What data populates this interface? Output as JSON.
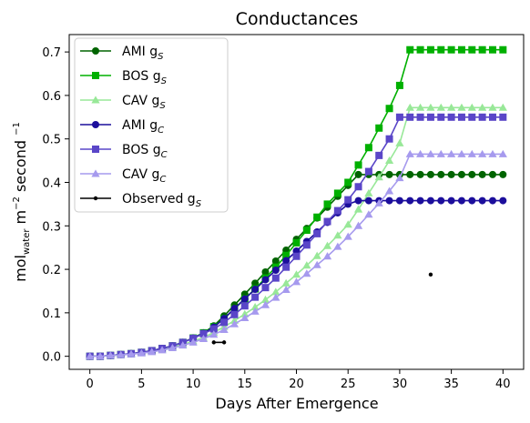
{
  "chart_data": {
    "type": "line",
    "title": "Conductances",
    "xlabel": "Days After Emergence",
    "ylabel": {
      "prefix": "mol",
      "subscript": "water",
      "mid": " m",
      "sup1": "−2",
      "mid2": " second ",
      "sup2": "−1"
    },
    "xlim": [
      -2,
      42
    ],
    "ylim": [
      -0.03,
      0.74
    ],
    "xticks": [
      0,
      5,
      10,
      15,
      20,
      25,
      30,
      35,
      40
    ],
    "yticks": [
      0.0,
      0.1,
      0.2,
      0.3,
      0.4,
      0.5,
      0.6,
      0.7
    ],
    "xtick_labels": [
      "0",
      "5",
      "10",
      "15",
      "20",
      "25",
      "30",
      "35",
      "40"
    ],
    "ytick_labels": [
      "0.0",
      "0.1",
      "0.2",
      "0.3",
      "0.4",
      "0.5",
      "0.6",
      "0.7"
    ],
    "legend_position": "upper-left",
    "x": [
      0,
      1,
      2,
      3,
      4,
      5,
      6,
      7,
      8,
      9,
      10,
      11,
      12,
      13,
      14,
      15,
      16,
      17,
      18,
      19,
      20,
      21,
      22,
      23,
      24,
      25,
      26,
      27,
      28,
      29,
      30,
      31,
      32,
      33,
      34,
      35,
      36,
      37,
      38,
      39,
      40
    ],
    "series": [
      {
        "name": "AMI g",
        "sub": "S",
        "color": "#006400",
        "marker": "circle",
        "values": [
          0.0,
          0.0,
          0.002,
          0.004,
          0.006,
          0.009,
          0.013,
          0.018,
          0.024,
          0.032,
          0.042,
          0.054,
          0.07,
          0.093,
          0.118,
          0.143,
          0.168,
          0.194,
          0.219,
          0.244,
          0.269,
          0.294,
          0.318,
          0.343,
          0.368,
          0.393,
          0.418,
          0.418,
          0.418,
          0.418,
          0.418,
          0.418,
          0.418,
          0.418,
          0.418,
          0.418,
          0.418,
          0.418,
          0.418,
          0.418,
          0.418
        ]
      },
      {
        "name": "BOS g",
        "sub": "S",
        "color": "#00b000",
        "marker": "square",
        "values": [
          0.0,
          0.0,
          0.002,
          0.004,
          0.006,
          0.009,
          0.013,
          0.018,
          0.024,
          0.032,
          0.042,
          0.054,
          0.068,
          0.087,
          0.109,
          0.132,
          0.155,
          0.18,
          0.205,
          0.232,
          0.261,
          0.29,
          0.32,
          0.35,
          0.375,
          0.4,
          0.44,
          0.48,
          0.525,
          0.57,
          0.623,
          0.705,
          0.705,
          0.705,
          0.705,
          0.705,
          0.705,
          0.705,
          0.705,
          0.705,
          0.705
        ]
      },
      {
        "name": "CAV g",
        "sub": "S",
        "color": "#98e898",
        "marker": "triangle",
        "values": [
          0.0,
          0.0,
          0.002,
          0.003,
          0.005,
          0.008,
          0.011,
          0.016,
          0.021,
          0.027,
          0.035,
          0.043,
          0.055,
          0.068,
          0.082,
          0.097,
          0.113,
          0.13,
          0.148,
          0.168,
          0.188,
          0.209,
          0.231,
          0.254,
          0.278,
          0.303,
          0.338,
          0.375,
          0.412,
          0.45,
          0.49,
          0.572,
          0.572,
          0.572,
          0.572,
          0.572,
          0.572,
          0.572,
          0.572,
          0.572,
          0.572
        ]
      },
      {
        "name": "AMI g",
        "sub": "C",
        "color": "#1c0e9c",
        "marker": "circle",
        "values": [
          0.0,
          0.0,
          0.002,
          0.004,
          0.006,
          0.009,
          0.013,
          0.018,
          0.024,
          0.032,
          0.042,
          0.053,
          0.067,
          0.087,
          0.11,
          0.132,
          0.154,
          0.176,
          0.198,
          0.22,
          0.242,
          0.264,
          0.286,
          0.308,
          0.33,
          0.35,
          0.358,
          0.358,
          0.358,
          0.358,
          0.358,
          0.358,
          0.358,
          0.358,
          0.358,
          0.358,
          0.358,
          0.358,
          0.358,
          0.358,
          0.358
        ]
      },
      {
        "name": "BOS g",
        "sub": "C",
        "color": "#5a46c8",
        "marker": "square",
        "values": [
          0.0,
          0.0,
          0.002,
          0.004,
          0.006,
          0.009,
          0.013,
          0.018,
          0.024,
          0.032,
          0.041,
          0.052,
          0.063,
          0.078,
          0.096,
          0.116,
          0.136,
          0.158,
          0.18,
          0.205,
          0.23,
          0.256,
          0.282,
          0.31,
          0.335,
          0.36,
          0.39,
          0.425,
          0.462,
          0.5,
          0.55,
          0.55,
          0.55,
          0.55,
          0.55,
          0.55,
          0.55,
          0.55,
          0.55,
          0.55,
          0.55
        ]
      },
      {
        "name": "CAV g",
        "sub": "C",
        "color": "#a69aee",
        "marker": "triangle",
        "values": [
          0.0,
          0.0,
          0.002,
          0.003,
          0.005,
          0.007,
          0.01,
          0.014,
          0.019,
          0.025,
          0.032,
          0.04,
          0.05,
          0.061,
          0.074,
          0.088,
          0.103,
          0.118,
          0.135,
          0.153,
          0.171,
          0.19,
          0.21,
          0.23,
          0.252,
          0.275,
          0.3,
          0.326,
          0.352,
          0.38,
          0.41,
          0.465,
          0.465,
          0.465,
          0.465,
          0.465,
          0.465,
          0.465,
          0.465,
          0.465,
          0.465
        ]
      }
    ],
    "observed": {
      "name": "Observed g",
      "sub": "S",
      "color": "#000000",
      "marker": "dot",
      "segments": [
        {
          "x": [
            12,
            13
          ],
          "y": [
            0.032,
            0.032
          ]
        },
        {
          "x": [
            33
          ],
          "y": [
            0.188
          ]
        }
      ]
    }
  }
}
